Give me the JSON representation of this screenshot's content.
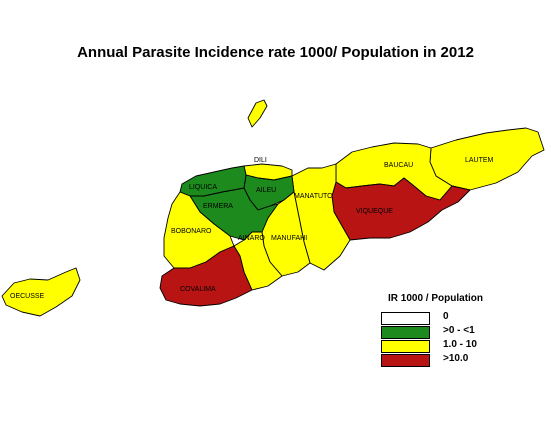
{
  "title": "Annual Parasite Incidence rate 1000/ Population in 2012",
  "colors": {
    "none": "#ffffff",
    "low": "#1c8a1c",
    "medium": "#ffff00",
    "high": "#b81414"
  },
  "districts": [
    {
      "name": "DILI",
      "category": "medium"
    },
    {
      "name": "LIQUICA",
      "category": "low"
    },
    {
      "name": "ERMERA",
      "category": "low"
    },
    {
      "name": "AILEU",
      "category": "low"
    },
    {
      "name": "MANATUTO",
      "category": "medium"
    },
    {
      "name": "BAUCAU",
      "category": "medium"
    },
    {
      "name": "LAUTEM",
      "category": "medium"
    },
    {
      "name": "VIQUEQUE",
      "category": "high"
    },
    {
      "name": "BOBONARO",
      "category": "medium"
    },
    {
      "name": "AINARO",
      "category": "medium"
    },
    {
      "name": "MANUFAHI",
      "category": "medium"
    },
    {
      "name": "COVALIMA",
      "category": "high"
    },
    {
      "name": "OECUSSE",
      "category": "medium"
    }
  ],
  "legend": {
    "title": "IR 1000 / Population",
    "items": [
      {
        "label": "0",
        "category": "none"
      },
      {
        "label": ">0 - <1",
        "category": "low"
      },
      {
        "label": "1.0 - 10",
        "category": "medium"
      },
      {
        "label": ">10.0",
        "category": "high"
      }
    ]
  }
}
